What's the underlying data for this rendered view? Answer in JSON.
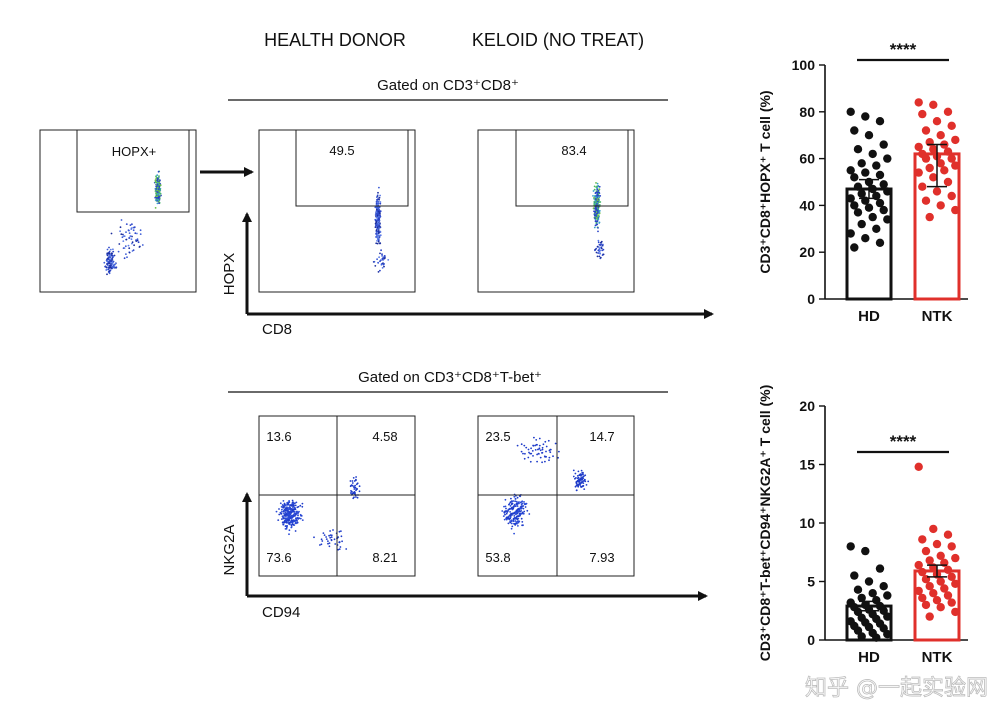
{
  "headers": {
    "health_donor": "HEALTH DONOR",
    "keloid": "KELOID (NO TREAT)"
  },
  "flow_top": {
    "gate_label": "Gated on CD3⁺CD8⁺",
    "parent_gate_label": "HOPX+",
    "hd_value": "49.5",
    "ntk_value": "83.4",
    "y_axis": "HOPX",
    "x_axis": "CD8"
  },
  "flow_bottom": {
    "gate_label": "Gated on CD3⁺CD8⁺T-bet⁺",
    "hd_quadrants": {
      "ul": "13.6",
      "ur": "4.58",
      "ll": "73.6",
      "lr": "8.21"
    },
    "ntk_quadrants": {
      "ul": "23.5",
      "ur": "14.7",
      "ll": "53.8",
      "lr": "7.93"
    },
    "y_axis": "NKG2A",
    "x_axis": "CD94"
  },
  "chart_data": [
    {
      "type": "bar",
      "categories": [
        "HD",
        "NTK"
      ],
      "values": [
        47,
        62
      ],
      "error": [
        [
          43,
          51
        ],
        [
          48,
          66
        ]
      ],
      "ylabel": "CD3⁺CD8⁺HOPX⁺ T cell (%)",
      "ylim": [
        0,
        100
      ],
      "yticks": [
        0,
        20,
        40,
        60,
        80,
        100
      ],
      "significance": "****",
      "colors": [
        "#111111",
        "#e0302b"
      ],
      "points": {
        "HD": [
          80,
          78,
          76,
          72,
          70,
          66,
          64,
          62,
          60,
          58,
          57,
          55,
          54,
          53,
          52,
          50,
          49,
          48,
          47,
          46,
          45,
          44,
          43,
          42,
          41,
          40,
          39,
          38,
          37,
          35,
          34,
          32,
          30,
          28,
          26,
          24,
          22
        ],
        "NTK": [
          84,
          83,
          80,
          79,
          76,
          74,
          72,
          70,
          68,
          67,
          66,
          65,
          64,
          63,
          62,
          61,
          60,
          60,
          58,
          57,
          56,
          55,
          54,
          52,
          50,
          48,
          46,
          44,
          42,
          40,
          38,
          35
        ]
      }
    },
    {
      "type": "bar",
      "categories": [
        "HD",
        "NTK"
      ],
      "values": [
        2.9,
        5.9
      ],
      "error": [
        [
          2.5,
          3.3
        ],
        [
          5.4,
          6.4
        ]
      ],
      "ylabel": "CD3⁺CD8⁺T-bet⁺CD94⁺NKG2A⁺ T cell (%)",
      "ylim": [
        0,
        20
      ],
      "yticks": [
        0,
        5,
        10,
        15,
        20
      ],
      "significance": "****",
      "colors": [
        "#111111",
        "#e0302b"
      ],
      "points": {
        "HD": [
          8.0,
          7.6,
          6.1,
          5.5,
          5.0,
          4.6,
          4.3,
          4.0,
          3.8,
          3.6,
          3.4,
          3.2,
          3.0,
          2.9,
          2.8,
          2.6,
          2.5,
          2.4,
          2.2,
          2.0,
          1.9,
          1.8,
          1.6,
          1.5,
          1.4,
          1.2,
          1.1,
          1.0,
          0.8,
          0.6,
          0.5,
          0.3,
          0.2
        ],
        "NTK": [
          14.8,
          9.5,
          9.0,
          8.6,
          8.2,
          8.0,
          7.6,
          7.2,
          7.0,
          6.8,
          6.6,
          6.4,
          6.2,
          6.0,
          5.8,
          5.6,
          5.4,
          5.2,
          5.0,
          4.8,
          4.6,
          4.4,
          4.2,
          4.0,
          3.8,
          3.6,
          3.4,
          3.2,
          3.0,
          2.8,
          2.4,
          2.0
        ]
      }
    }
  ],
  "watermark": "知乎 @一起实验网"
}
